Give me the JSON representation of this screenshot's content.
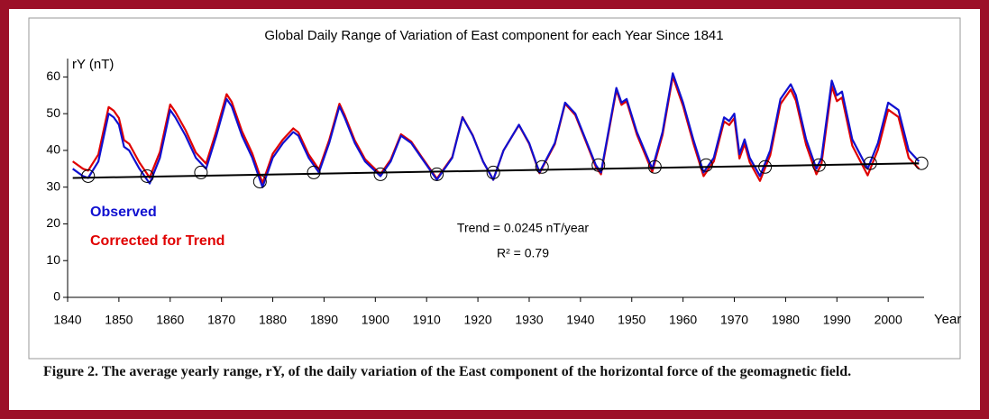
{
  "chart_data": {
    "type": "line",
    "title": "Global Daily Range of Variation of East component for each Year Since 1841",
    "y_label": "rY (nT)",
    "x_label": "Year",
    "annotations": [
      "Trend = 0.0245 nT/year",
      "R² = 0.79"
    ],
    "caption": "Figure 2. The average yearly range, rY, of the daily variation of the East component of the horizontal force of the geomagnetic field.",
    "xlim": [
      1840,
      2007
    ],
    "ylim": [
      0,
      65
    ],
    "xticks": [
      1840,
      1850,
      1860,
      1870,
      1880,
      1890,
      1900,
      1910,
      1920,
      1930,
      1940,
      1950,
      1960,
      1970,
      1980,
      1990,
      2000
    ],
    "yticks": [
      0,
      10,
      20,
      30,
      40,
      50,
      60
    ],
    "x": [
      1841,
      1843,
      1844,
      1846,
      1848,
      1849,
      1850,
      1851,
      1852,
      1854,
      1856,
      1858,
      1860,
      1861,
      1863,
      1865,
      1867,
      1869,
      1871,
      1872,
      1874,
      1876,
      1878,
      1880,
      1882,
      1884,
      1885,
      1887,
      1889,
      1891,
      1893,
      1894,
      1896,
      1898,
      1901,
      1903,
      1905,
      1907,
      1909,
      1912,
      1915,
      1917,
      1919,
      1921,
      1923,
      1925,
      1928,
      1930,
      1932,
      1935,
      1937,
      1939,
      1941,
      1943,
      1944,
      1947,
      1948,
      1949,
      1951,
      1954,
      1956,
      1958,
      1960,
      1962,
      1964,
      1966,
      1968,
      1969,
      1970,
      1971,
      1972,
      1973,
      1975,
      1977,
      1979,
      1981,
      1982,
      1984,
      1986,
      1987,
      1989,
      1990,
      1991,
      1993,
      1996,
      1998,
      2000,
      2002,
      2004,
      2006
    ],
    "series": [
      {
        "name": "Corrected for Trend",
        "color": "#e00000",
        "values": [
          37,
          35,
          34.5,
          38.9,
          51.8,
          50.8,
          48.8,
          42.8,
          41.8,
          36.7,
          32.6,
          39.6,
          52.5,
          50.5,
          45.5,
          39.4,
          36.4,
          45.3,
          55.3,
          53.2,
          45.2,
          39.2,
          31.1,
          39.1,
          43,
          46,
          44.9,
          38.9,
          34.8,
          42.8,
          52.7,
          49.7,
          42.7,
          37.6,
          33.5,
          37.5,
          44.4,
          42.4,
          38.3,
          32.3,
          38.2,
          49.1,
          44.1,
          37,
          32,
          40,
          46.9,
          41.8,
          33.8,
          41.7,
          52.7,
          49.6,
          42.6,
          35.5,
          33.5,
          56.4,
          52.4,
          53.4,
          44.3,
          34.2,
          44.2,
          60.1,
          52.1,
          42,
          33,
          37,
          47.9,
          46.9,
          48.8,
          37.8,
          41.8,
          36.8,
          31.7,
          38.7,
          52.6,
          56.6,
          53.6,
          41.5,
          33.5,
          36.4,
          57.4,
          53.4,
          54.4,
          41.3,
          33.2,
          40.2,
          51.1,
          49.1,
          38,
          35
        ]
      },
      {
        "name": "Observed",
        "color": "#1010d0",
        "values": [
          35,
          33,
          32.5,
          37,
          50,
          49,
          47,
          41,
          40,
          35,
          31,
          38,
          51,
          49,
          44,
          38,
          35,
          44,
          54,
          52,
          44,
          38,
          30,
          38,
          42,
          45,
          44,
          38,
          34,
          42,
          52,
          49,
          42,
          37,
          33,
          37,
          44,
          42,
          38,
          32,
          38,
          49,
          44,
          37,
          32,
          40,
          47,
          42,
          34,
          42,
          53,
          50,
          43,
          36,
          34,
          57,
          53,
          54,
          45,
          35,
          45,
          61,
          53,
          43,
          34,
          38,
          49,
          48,
          50,
          39,
          43,
          38,
          33,
          40,
          54,
          58,
          55,
          43,
          35,
          38,
          59,
          55,
          56,
          43,
          35,
          42,
          53,
          51,
          40,
          37
        ]
      }
    ],
    "trend": {
      "x": [
        1841,
        2006
      ],
      "values": [
        32.5,
        36.5
      ],
      "color": "#000000"
    },
    "minima": {
      "x": [
        1844,
        1855.5,
        1866,
        1877.5,
        1888,
        1901,
        1912,
        1923,
        1932.5,
        1943.5,
        1954.5,
        1964.5,
        1976,
        1986.5,
        1996.5,
        2006.5
      ],
      "values": [
        33,
        33,
        34,
        31.5,
        34,
        33.5,
        33.5,
        34,
        35.5,
        36,
        35.5,
        36,
        35.5,
        36,
        36.5,
        36.5
      ]
    }
  }
}
